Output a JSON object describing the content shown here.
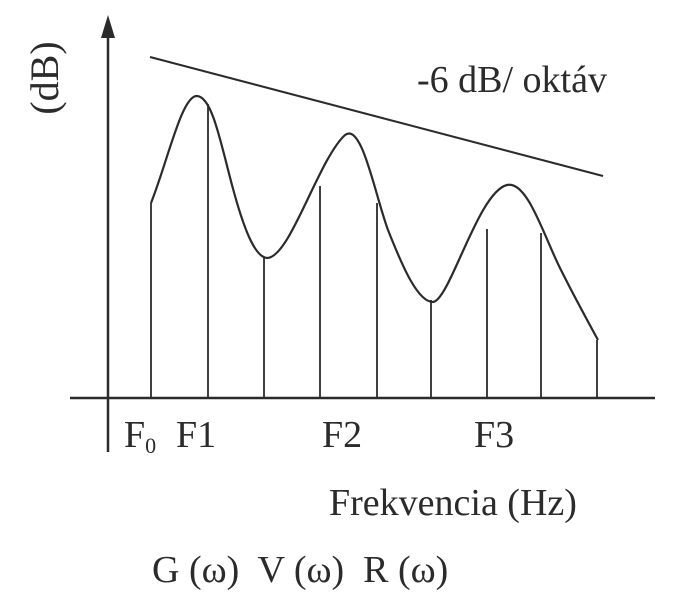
{
  "figure": {
    "y_axis_label": "(dB)",
    "slope_label": "-6 dB/ oktáv",
    "x_axis_label": "Frekvencia (Hz)",
    "x_ticks": {
      "f0_base": "F",
      "f0_sub": "0",
      "f1": "F1",
      "f2": "F2",
      "f3": "F3"
    },
    "formula": "G (ω)  V (ω)  R (ω)",
    "line_color": "#2b2b2b",
    "background": "#ffffff"
  }
}
